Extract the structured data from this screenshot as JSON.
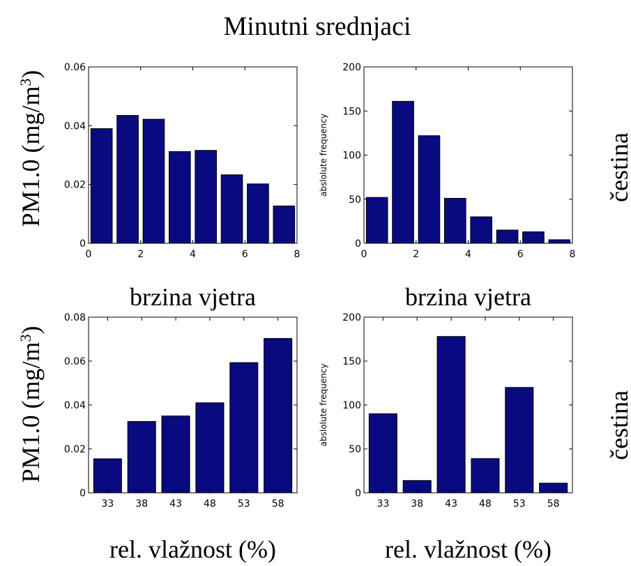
{
  "figure": {
    "title": "Minutni srednjaci",
    "row_labels": [
      "PM1.0 (mg/m",
      "PM1.0 (mg/m"
    ],
    "row_label_superscript": "3",
    "row_label_close": ")",
    "right_labels": [
      "čestina",
      "čestina"
    ]
  },
  "colors": {
    "bar": "#0a0a80",
    "bar_edge": "#000000"
  },
  "chart_data": [
    {
      "id": "c00",
      "type": "bar",
      "title": "",
      "xlabel": "brzina vjetra",
      "ylabel": "",
      "x": [
        0.5,
        1.5,
        2.5,
        3.5,
        4.5,
        5.5,
        6.5,
        7.5
      ],
      "values": [
        0.039,
        0.0435,
        0.0422,
        0.0312,
        0.0316,
        0.0233,
        0.0202,
        0.0127
      ],
      "xlim": [
        0,
        8
      ],
      "ylim": [
        0,
        0.06
      ],
      "xticks": [
        0,
        2,
        4,
        6,
        8
      ],
      "xtick_labels": [
        "0",
        "2",
        "4",
        "6",
        "8"
      ],
      "yticks": [
        0,
        0.02,
        0.04,
        0.06
      ],
      "ytick_labels": [
        "0",
        "0.02",
        "0.04",
        "0.06"
      ],
      "grid": false,
      "legend": "none"
    },
    {
      "id": "c01",
      "type": "bar",
      "title": "",
      "xlabel": "brzina vjetra",
      "ylabel": "abslolute frequency",
      "x": [
        0.5,
        1.5,
        2.5,
        3.5,
        4.5,
        5.5,
        6.5,
        7.5
      ],
      "values": [
        52,
        161,
        122,
        51,
        30,
        15,
        13,
        4
      ],
      "xlim": [
        0,
        8
      ],
      "ylim": [
        0,
        200
      ],
      "xticks": [
        0,
        2,
        4,
        6,
        8
      ],
      "xtick_labels": [
        "0",
        "2",
        "4",
        "6",
        "8"
      ],
      "yticks": [
        0,
        50,
        100,
        150,
        200
      ],
      "ytick_labels": [
        "0",
        "50",
        "100",
        "150",
        "200"
      ],
      "grid": false,
      "legend": "none"
    },
    {
      "id": "c10",
      "type": "bar",
      "title": "",
      "xlabel": "rel. vlažnost (%)",
      "ylabel": "",
      "x": [
        33,
        38,
        43,
        48,
        53,
        58
      ],
      "values": [
        0.0155,
        0.0325,
        0.035,
        0.041,
        0.0593,
        0.0703
      ],
      "xlim": [
        30.2,
        60.8
      ],
      "ylim": [
        0,
        0.08
      ],
      "xticks": [
        33,
        38,
        43,
        48,
        53,
        58
      ],
      "xtick_labels": [
        "33",
        "38",
        "43",
        "48",
        "53",
        "58"
      ],
      "yticks": [
        0,
        0.02,
        0.04,
        0.06,
        0.08
      ],
      "ytick_labels": [
        "0",
        "0.02",
        "0.04",
        "0.06",
        "0.08"
      ],
      "grid": false,
      "legend": "none"
    },
    {
      "id": "c11",
      "type": "bar",
      "title": "",
      "xlabel": "rel. vlažnost (%)",
      "ylabel": "abslolute frequency",
      "x": [
        33,
        38,
        43,
        48,
        53,
        58
      ],
      "values": [
        90,
        14,
        178,
        39,
        120,
        11
      ],
      "xlim": [
        30.2,
        60.8
      ],
      "ylim": [
        0,
        200
      ],
      "xticks": [
        33,
        38,
        43,
        48,
        53,
        58
      ],
      "xtick_labels": [
        "33",
        "38",
        "43",
        "48",
        "53",
        "58"
      ],
      "yticks": [
        0,
        50,
        100,
        150,
        200
      ],
      "ytick_labels": [
        "0",
        "50",
        "100",
        "150",
        "200"
      ],
      "grid": false,
      "legend": "none"
    }
  ]
}
